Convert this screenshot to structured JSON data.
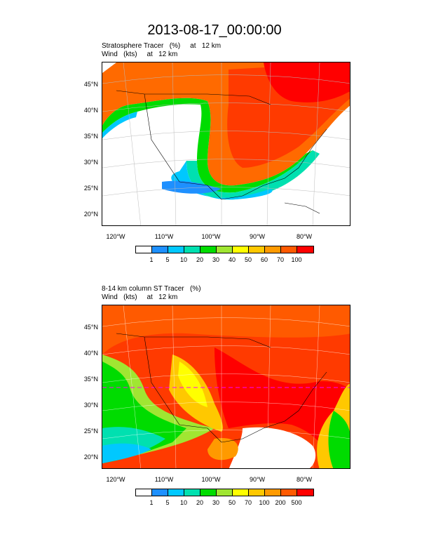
{
  "title": "2013-08-17_00:00:00",
  "panel1": {
    "subtitle1": "Stratosphere Tracer   (%)     at   12 km",
    "subtitle2": "Wind   (kts)     at   12 km",
    "colorbar_labels": [
      "1",
      "5",
      "10",
      "20",
      "30",
      "40",
      "50",
      "60",
      "70",
      "100"
    ]
  },
  "panel2": {
    "subtitle1": "8-14 km column ST Tracer   (%)",
    "subtitle2": "Wind   (kts)     at   12 km",
    "colorbar_labels": [
      "1",
      "5",
      "10",
      "20",
      "30",
      "50",
      "70",
      "100",
      "200",
      "500"
    ]
  },
  "lat_labels": [
    "45°N",
    "40°N",
    "35°N",
    "30°N",
    "25°N",
    "20°N"
  ],
  "lon_labels": [
    "120°W",
    "110°W",
    "100°W",
    "90°W",
    "80°W"
  ],
  "colors": [
    "#ffffff",
    "#1e90ff",
    "#00c8ff",
    "#00e0b0",
    "#00dc00",
    "#a0e632",
    "#ffff00",
    "#ffc800",
    "#ff9a00",
    "#ff5a00",
    "#ff0000"
  ]
}
